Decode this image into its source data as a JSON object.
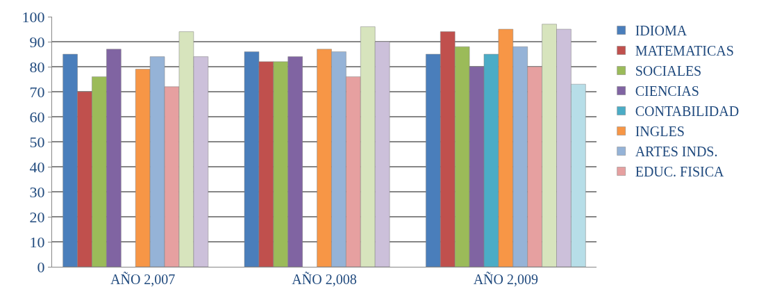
{
  "chart_data": {
    "type": "bar",
    "categories": [
      "AÑO 2,007",
      "AÑO 2,008",
      "AÑO 2,009"
    ],
    "series": [
      {
        "name": "IDIOMA",
        "color": "#4a7ebb",
        "values": [
          85,
          86,
          85
        ]
      },
      {
        "name": "MATEMATICAS",
        "color": "#c0504d",
        "values": [
          70,
          82,
          94
        ]
      },
      {
        "name": "SOCIALES",
        "color": "#9bbb59",
        "values": [
          76,
          82,
          88
        ]
      },
      {
        "name": "CIENCIAS",
        "color": "#8064a2",
        "values": [
          87,
          84,
          80
        ]
      },
      {
        "name": "CONTABILIDAD",
        "color": "#4bacc6",
        "values": [
          null,
          null,
          85
        ]
      },
      {
        "name": "INGLES",
        "color": "#f79646",
        "values": [
          79,
          87,
          95
        ]
      },
      {
        "name": "ARTES INDS.",
        "color": "#95b3d7",
        "values": [
          84,
          86,
          88
        ]
      },
      {
        "name": "EDUC. FISICA",
        "color": "#e6a0a0",
        "values": [
          72,
          76,
          80
        ]
      },
      {
        "color": "#d7e4bd",
        "values": [
          94,
          96,
          97
        ]
      },
      {
        "color": "#ccc0da",
        "values": [
          84,
          90,
          95
        ]
      },
      {
        "color": "#b7dee8",
        "values": [
          null,
          null,
          73
        ]
      }
    ],
    "ylim": [
      0,
      100
    ],
    "yticks": [
      0,
      10,
      20,
      30,
      40,
      50,
      60,
      70,
      80,
      90,
      100
    ],
    "grid": "y",
    "legend": "right"
  }
}
